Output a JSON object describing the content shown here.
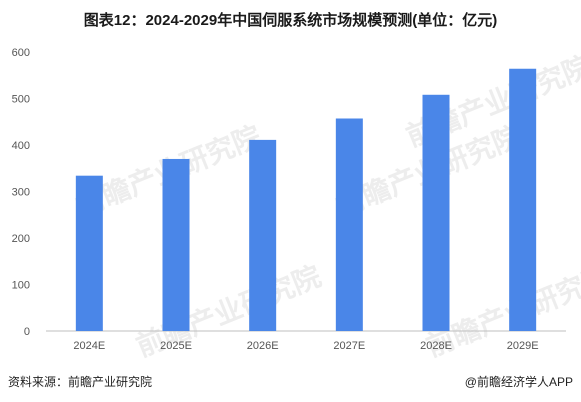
{
  "title": "图表12：2024-2029年中国伺服系统市场规模预测(单位：亿元)",
  "footer": {
    "source": "资料来源：前瞻产业研究院",
    "credit": "@前瞻经济学人APP"
  },
  "watermark": "前瞻产业研究院",
  "colors": {
    "bar": "#4A86E8",
    "axis": "#bfbfbf"
  },
  "chart_data": {
    "type": "bar",
    "categories": [
      "2024E",
      "2025E",
      "2026E",
      "2027E",
      "2028E",
      "2029E"
    ],
    "values": [
      334,
      370,
      411,
      457,
      508,
      564
    ],
    "ylim": [
      0,
      600
    ],
    "yticks": [
      0,
      100,
      200,
      300,
      400,
      500,
      600
    ],
    "title": "",
    "xlabel": "",
    "ylabel": "",
    "grid": false,
    "legend": "none"
  }
}
